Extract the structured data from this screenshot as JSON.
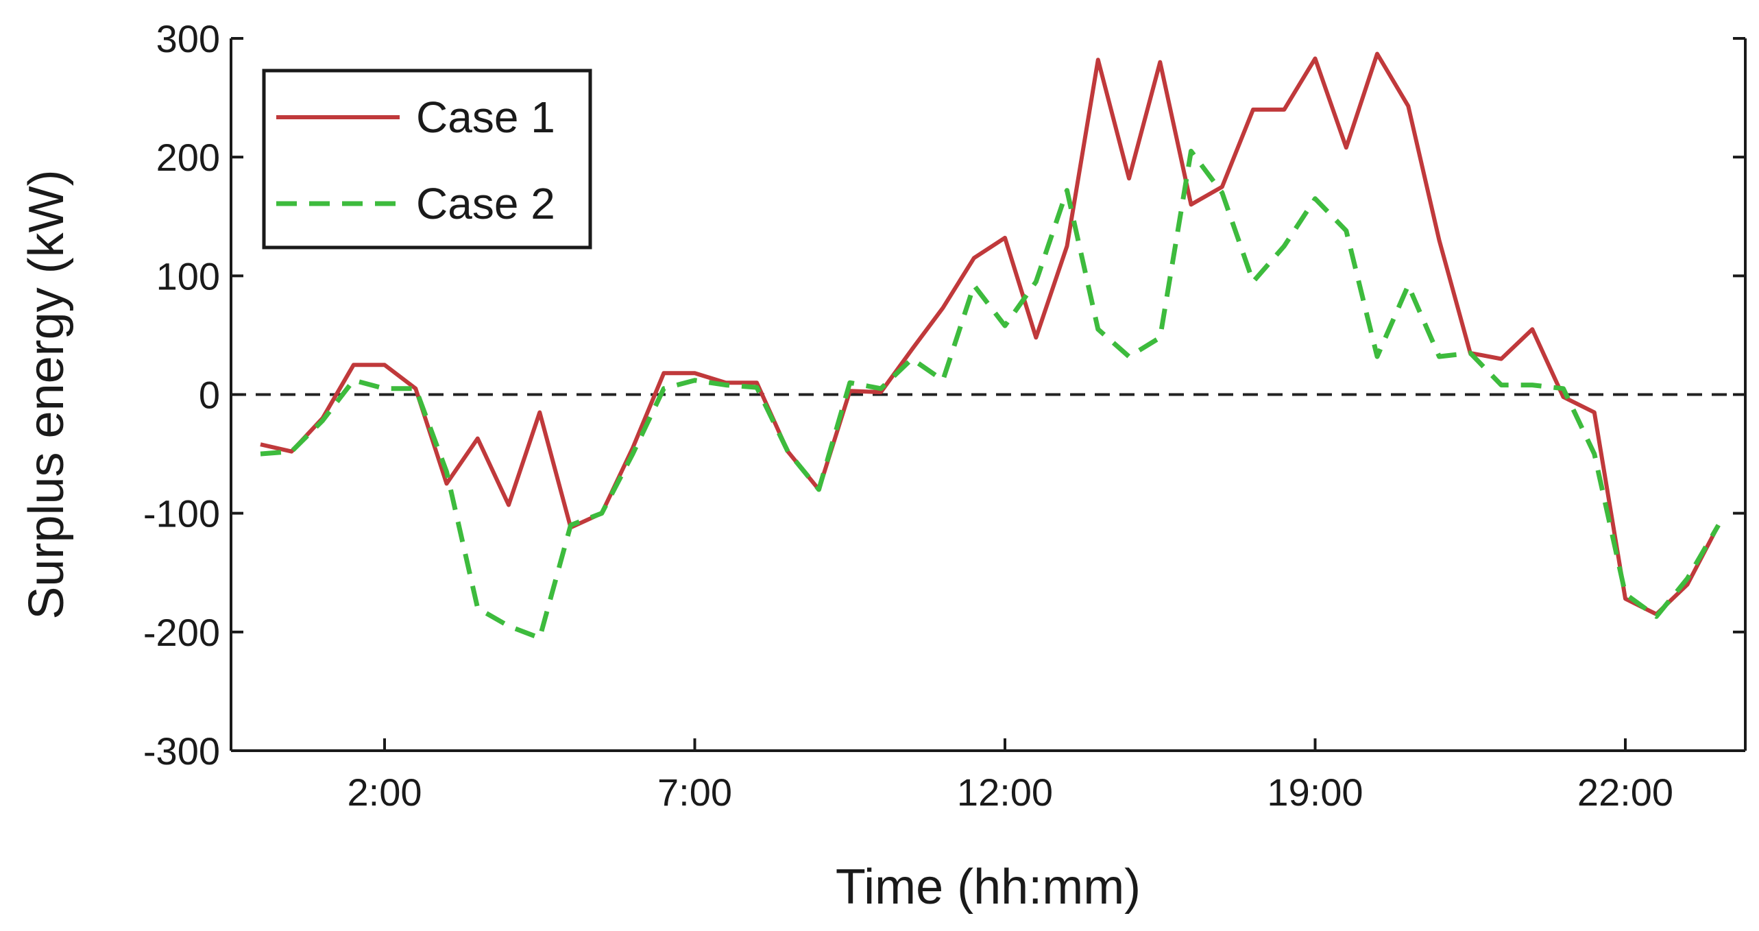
{
  "chart_data": {
    "type": "line",
    "xlabel": "Time (hh:mm)",
    "ylabel": "Surplus energy (kW)",
    "ylim": [
      -300,
      300
    ],
    "yticks": [
      -300,
      -200,
      -100,
      0,
      100,
      200,
      300
    ],
    "xticks": [
      {
        "label": "2:00",
        "index": 4
      },
      {
        "label": "7:00",
        "index": 14
      },
      {
        "label": "12:00",
        "index": 24
      },
      {
        "label": "19:00",
        "index": 34
      },
      {
        "label": "22:00",
        "index": 44
      }
    ],
    "reference_line": {
      "y": 0,
      "style": "dashed",
      "color": "#222222"
    },
    "legend": {
      "position": "top-left",
      "boxed": true
    },
    "series": [
      {
        "name": "Case 1",
        "color": "#c0393b",
        "style": "solid",
        "values": [
          -42,
          -48,
          -20,
          25,
          25,
          5,
          -75,
          -37,
          -93,
          -15,
          -112,
          -100,
          -45,
          18,
          18,
          10,
          10,
          -48,
          -80,
          3,
          2,
          38,
          73,
          115,
          132,
          48,
          125,
          282,
          182,
          280,
          160,
          175,
          240,
          240,
          283,
          208,
          287,
          243,
          130,
          35,
          30,
          55,
          -2,
          -15,
          -172,
          -185,
          -160,
          -110
        ]
      },
      {
        "name": "Case 2",
        "color": "#3dbb3d",
        "style": "dashed",
        "values": [
          -50,
          -48,
          -22,
          12,
          5,
          5,
          -65,
          -180,
          -195,
          -205,
          -110,
          -100,
          -50,
          5,
          12,
          8,
          6,
          -48,
          -80,
          10,
          5,
          30,
          12,
          92,
          58,
          95,
          172,
          55,
          32,
          48,
          205,
          170,
          95,
          125,
          165,
          138,
          32,
          92,
          32,
          35,
          8,
          8,
          5,
          -50,
          -168,
          -187,
          -155,
          -110
        ]
      }
    ]
  }
}
